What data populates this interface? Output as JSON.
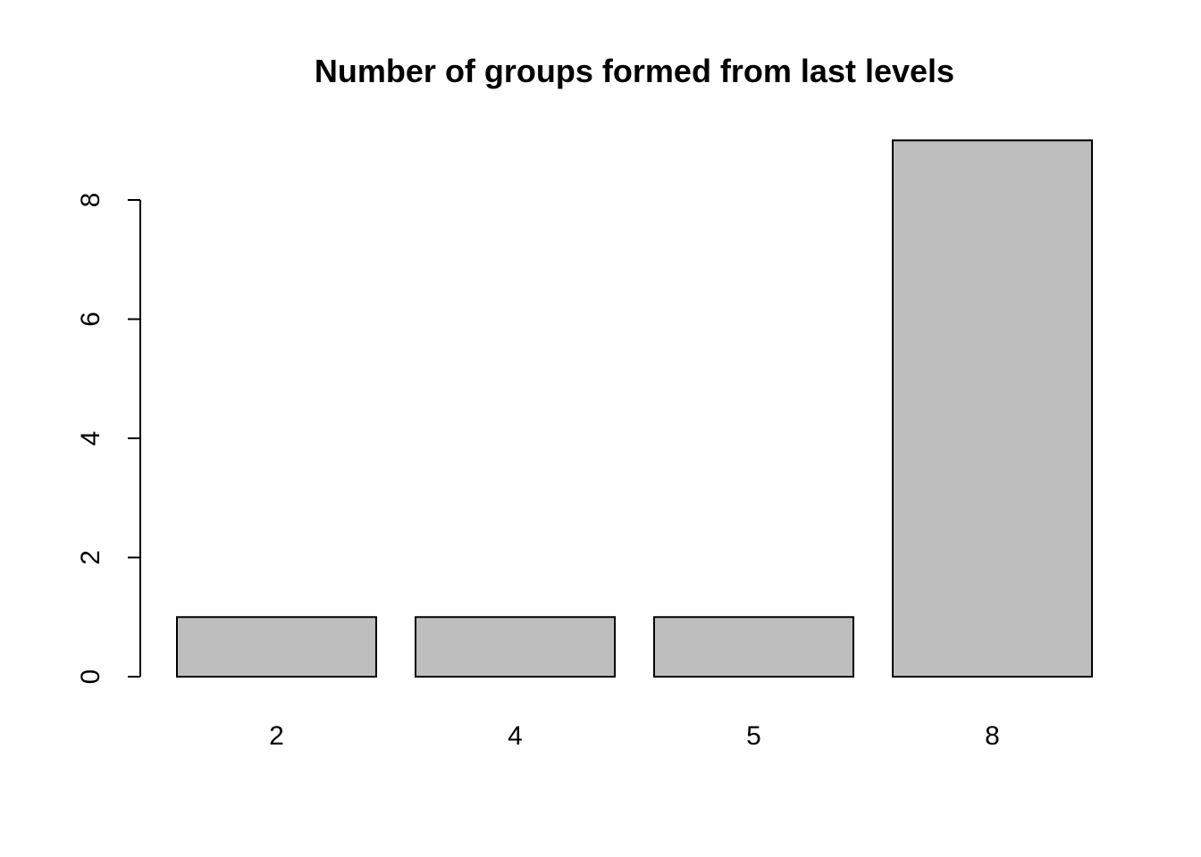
{
  "chart_data": {
    "type": "bar",
    "title": "Number of groups formed from last levels",
    "xlabel": "",
    "ylabel": "",
    "categories": [
      "2",
      "4",
      "5",
      "8"
    ],
    "values": [
      1,
      1,
      1,
      9
    ],
    "yticks": [
      0,
      2,
      4,
      6,
      8
    ],
    "ylim": [
      0,
      9
    ],
    "grid": false,
    "legend": "none",
    "bar_color": "#bebebe",
    "border_color": "#000000"
  }
}
